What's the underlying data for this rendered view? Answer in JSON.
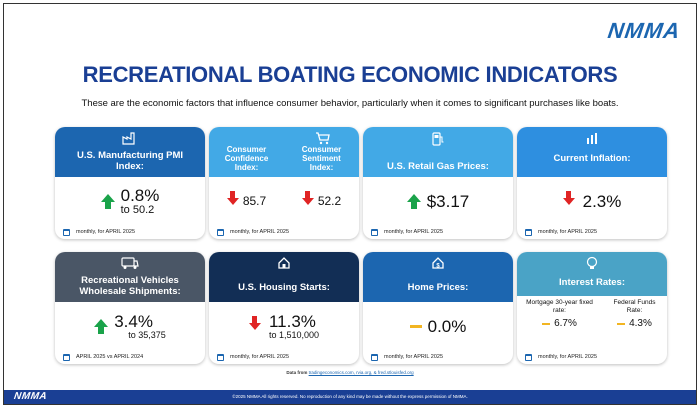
{
  "brand": {
    "logo": "NMMA"
  },
  "header": {
    "title": "RECREATIONAL BOATING ECONOMIC INDICATORS",
    "subtitle": "These are the economic factors that influence consumer behavior, particularly when it comes to significant purchases like boats."
  },
  "cards": {
    "pmi": {
      "label": "U.S. Manufacturing PMI Index:",
      "value": "0.8%",
      "sub": "to 50.2",
      "foot": "monthly, for APRIL 2025",
      "icon": "factory-icon",
      "trend": "up"
    },
    "confidence": {
      "label_a": "Consumer Confidence Index:",
      "value_a": "85.7",
      "label_b": "Consumer Sentiment Index:",
      "value_b": "52.2",
      "foot": "monthly, for APRIL 2025",
      "icon": "shopping-cart-icon",
      "trend": "down"
    },
    "gas": {
      "label": "U.S. Retail Gas Prices:",
      "value": "$3.17",
      "foot": "monthly, for APRIL 2025",
      "icon": "gas-pump-icon",
      "trend": "up"
    },
    "inflation": {
      "label": "Current Inflation:",
      "value": "2.3%",
      "foot": "monthly, for APRIL 2025",
      "icon": "bar-chart-icon",
      "trend": "down"
    },
    "rv": {
      "label": "Recreational Vehicles Wholesale Shipments:",
      "value": "3.4%",
      "sub": "to 35,375",
      "foot": "APRIL 2025 vs APRIL 2024",
      "icon": "rv-icon",
      "trend": "up"
    },
    "housing": {
      "label": "U.S. Housing Starts:",
      "value": "11.3%",
      "sub": "to 1,510,000",
      "foot": "monthly, for APRIL 2025",
      "icon": "house-icon",
      "trend": "down"
    },
    "home": {
      "label": "Home Prices:",
      "value": "0.0%",
      "foot": "monthly, for APRIL 2025",
      "icon": "house-dollar-icon",
      "trend": "flat"
    },
    "interest": {
      "label": "Interest Rates:",
      "label_a": "Mortgage 30-year fixed rate:",
      "value_a": "6.7%",
      "label_b": "Federal Funds Rate:",
      "value_b": "4.3%",
      "foot": "monthly, for APRIL 2025",
      "icon": "lightbulb-icon",
      "trend": "flat"
    }
  },
  "footer": {
    "source_prefix": "Data from",
    "source_links": "tradingeconomics.com, rvia.org, & fred.stlouisfed.org",
    "copyright": "©2025 NMMA All rights reserved. No reproduction of any kind may be made without the express permission of NMMA."
  },
  "colors": {
    "navy": "#1a3f94",
    "up": "#1aa34a",
    "down": "#e02424",
    "flat": "#f2b522"
  }
}
